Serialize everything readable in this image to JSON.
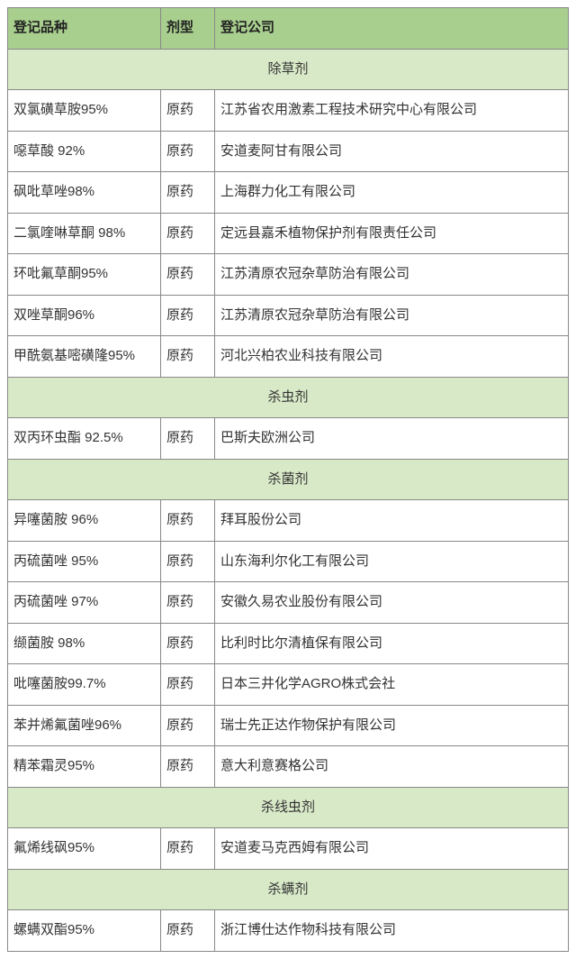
{
  "columns": {
    "product": "登记品种",
    "form": "剂型",
    "company": "登记公司"
  },
  "sections": [
    {
      "title": "除草剂",
      "rows": [
        {
          "product": "双氯磺草胺95%",
          "form": "原药",
          "company": "江苏省农用激素工程技术研究中心有限公司"
        },
        {
          "product": "噁草酸 92%",
          "form": "原药",
          "company": "安道麦阿甘有限公司"
        },
        {
          "product": "砜吡草唑98%",
          "form": "原药",
          "company": "上海群力化工有限公司"
        },
        {
          "product": "二氯喹啉草酮 98%",
          "form": "原药",
          "company": "定远县嘉禾植物保护剂有限责任公司"
        },
        {
          "product": "环吡氟草酮95%",
          "form": "原药",
          "company": "江苏清原农冠杂草防治有限公司"
        },
        {
          "product": "双唑草酮96%",
          "form": "原药",
          "company": "江苏清原农冠杂草防治有限公司"
        },
        {
          "product": "甲酰氨基嘧磺隆95%",
          "form": "原药",
          "company": "河北兴柏农业科技有限公司"
        }
      ]
    },
    {
      "title": "杀虫剂",
      "rows": [
        {
          "product": "双丙环虫酯 92.5%",
          "form": "原药",
          "company": "巴斯夫欧洲公司"
        }
      ]
    },
    {
      "title": "杀菌剂",
      "rows": [
        {
          "product": "异噻菌胺 96%",
          "form": "原药",
          "company": "拜耳股份公司"
        },
        {
          "product": "丙硫菌唑 95%",
          "form": "原药",
          "company": "山东海利尔化工有限公司"
        },
        {
          "product": "丙硫菌唑 97%",
          "form": "原药",
          "company": "安徽久易农业股份有限公司"
        },
        {
          "product": "缬菌胺 98%",
          "form": "原药",
          "company": "比利时比尔清植保有限公司"
        },
        {
          "product": "吡噻菌胺99.7%",
          "form": "原药",
          "company": "日本三井化学AGRO株式会社"
        },
        {
          "product": "苯并烯氟菌唑96%",
          "form": "原药",
          "company": "瑞士先正达作物保护有限公司"
        },
        {
          "product": "精苯霜灵95%",
          "form": "原药",
          "company": "意大利意赛格公司"
        }
      ]
    },
    {
      "title": "杀线虫剂",
      "rows": [
        {
          "product": "氟烯线砜95%",
          "form": "原药",
          "company": "安道麦马克西姆有限公司"
        }
      ]
    },
    {
      "title": "杀螨剂",
      "rows": [
        {
          "product": "螺螨双酯95%",
          "form": "原药",
          "company": "浙江博仕达作物科技有限公司"
        }
      ]
    }
  ]
}
